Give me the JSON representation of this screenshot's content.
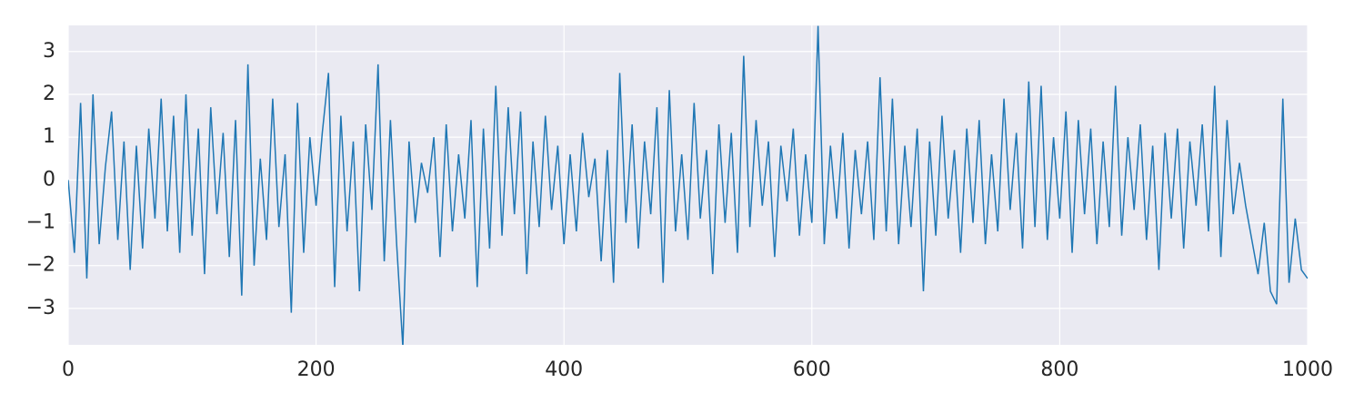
{
  "chart_data": {
    "type": "line",
    "x": [
      0,
      5,
      10,
      15,
      20,
      25,
      30,
      35,
      40,
      45,
      50,
      55,
      60,
      65,
      70,
      75,
      80,
      85,
      90,
      95,
      100,
      105,
      110,
      115,
      120,
      125,
      130,
      135,
      140,
      145,
      150,
      155,
      160,
      165,
      170,
      175,
      180,
      185,
      190,
      195,
      200,
      205,
      210,
      215,
      220,
      225,
      230,
      235,
      240,
      245,
      250,
      255,
      260,
      265,
      270,
      275,
      280,
      285,
      290,
      295,
      300,
      305,
      310,
      315,
      320,
      325,
      330,
      335,
      340,
      345,
      350,
      355,
      360,
      365,
      370,
      375,
      380,
      385,
      390,
      395,
      400,
      405,
      410,
      415,
      420,
      425,
      430,
      435,
      440,
      445,
      450,
      455,
      460,
      465,
      470,
      475,
      480,
      485,
      490,
      495,
      500,
      505,
      510,
      515,
      520,
      525,
      530,
      535,
      540,
      545,
      550,
      555,
      560,
      565,
      570,
      575,
      580,
      585,
      590,
      595,
      600,
      605,
      610,
      615,
      620,
      625,
      630,
      635,
      640,
      645,
      650,
      655,
      660,
      665,
      670,
      675,
      680,
      685,
      690,
      695,
      700,
      705,
      710,
      715,
      720,
      725,
      730,
      735,
      740,
      745,
      750,
      755,
      760,
      765,
      770,
      775,
      780,
      785,
      790,
      795,
      800,
      805,
      810,
      815,
      820,
      825,
      830,
      835,
      840,
      845,
      850,
      855,
      860,
      865,
      870,
      875,
      880,
      885,
      890,
      895,
      900,
      905,
      910,
      915,
      920,
      925,
      930,
      935,
      940,
      945,
      950,
      955,
      960,
      965,
      970,
      975,
      980,
      985,
      990,
      995,
      1000
    ],
    "series": [
      {
        "color": "#1f77b4",
        "values": [
          0.0,
          -1.7,
          1.8,
          -2.3,
          2.0,
          -1.5,
          0.3,
          1.6,
          -1.4,
          0.9,
          -2.1,
          0.8,
          -1.6,
          1.2,
          -0.9,
          1.9,
          -1.2,
          1.5,
          -1.7,
          2.0,
          -1.3,
          1.2,
          -2.2,
          1.7,
          -0.8,
          1.1,
          -1.8,
          1.4,
          -2.7,
          2.7,
          -2.0,
          0.5,
          -1.4,
          1.9,
          -1.1,
          0.6,
          -3.1,
          1.8,
          -1.7,
          1.0,
          -0.6,
          1.1,
          2.5,
          -2.5,
          1.5,
          -1.2,
          0.9,
          -2.6,
          1.3,
          -0.7,
          2.7,
          -1.9,
          1.4,
          -1.5,
          -3.9,
          0.9,
          -1.0,
          0.4,
          -0.3,
          1.0,
          -1.8,
          1.3,
          -1.2,
          0.6,
          -0.9,
          1.4,
          -2.5,
          1.2,
          -1.6,
          2.2,
          -1.3,
          1.7,
          -0.8,
          1.6,
          -2.2,
          0.9,
          -1.1,
          1.5,
          -0.7,
          0.8,
          -1.5,
          0.6,
          -1.2,
          1.1,
          -0.4,
          0.5,
          -1.9,
          0.7,
          -2.4,
          2.5,
          -1.0,
          1.3,
          -1.6,
          0.9,
          -0.8,
          1.7,
          -2.4,
          2.1,
          -1.2,
          0.6,
          -1.4,
          1.8,
          -0.9,
          0.7,
          -2.2,
          1.3,
          -1.0,
          1.1,
          -1.7,
          2.9,
          -1.1,
          1.4,
          -0.6,
          0.9,
          -1.8,
          0.8,
          -0.5,
          1.2,
          -1.3,
          0.6,
          -1.0,
          3.6,
          -1.5,
          0.8,
          -0.9,
          1.1,
          -1.6,
          0.7,
          -0.8,
          0.9,
          -1.4,
          2.4,
          -1.2,
          1.9,
          -1.5,
          0.8,
          -1.1,
          1.2,
          -2.6,
          0.9,
          -1.3,
          1.5,
          -0.9,
          0.7,
          -1.7,
          1.2,
          -1.0,
          1.4,
          -1.5,
          0.6,
          -1.2,
          1.9,
          -0.7,
          1.1,
          -1.6,
          2.3,
          -1.1,
          2.2,
          -1.4,
          1.0,
          -0.9,
          1.6,
          -1.7,
          1.4,
          -0.8,
          1.2,
          -1.5,
          0.9,
          -1.1,
          2.2,
          -1.3,
          1.0,
          -0.7,
          1.3,
          -1.4,
          0.8,
          -2.1,
          1.1,
          -0.9,
          1.2,
          -1.6,
          0.9,
          -0.6,
          1.3,
          -1.2,
          2.2,
          -1.8,
          1.4,
          -0.8,
          0.4,
          -0.6,
          -1.4,
          -2.2,
          -1.0,
          -2.6,
          -2.9,
          1.9,
          -2.4,
          -0.9,
          -2.1,
          -2.3
        ]
      }
    ],
    "xlim": [
      0,
      1000
    ],
    "ylim": [
      -3.85,
      3.61
    ],
    "xticks": [
      0,
      200,
      400,
      600,
      800,
      1000
    ],
    "yticks": [
      {
        "value": -3,
        "label": "−3"
      },
      {
        "value": -2,
        "label": "−2"
      },
      {
        "value": -1,
        "label": "−1"
      },
      0,
      1,
      2,
      3
    ],
    "grid": true
  }
}
